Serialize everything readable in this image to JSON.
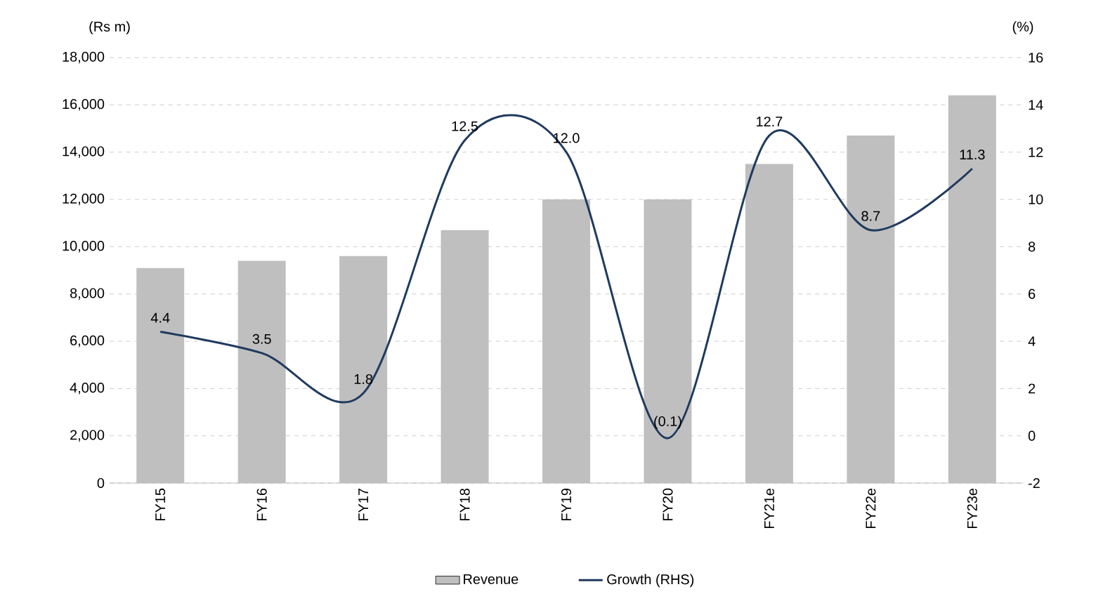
{
  "chart_data": {
    "type": "bar",
    "ylabel": "(Rs m)",
    "y2label": "(%)",
    "categories": [
      "FY15",
      "FY16",
      "FY17",
      "FY18",
      "FY19",
      "FY20",
      "FY21e",
      "FY22e",
      "FY23e"
    ],
    "series": [
      {
        "name": "Revenue",
        "color": "#bfbfbf",
        "values": [
          9100,
          9400,
          9600,
          10700,
          12000,
          12000,
          13500,
          14700,
          16400
        ]
      },
      {
        "name": "Growth (RHS)",
        "type": "line",
        "axis": "y2",
        "color": "#1f3a5f",
        "values": [
          4.4,
          3.5,
          1.8,
          12.5,
          12.0,
          -0.1,
          12.7,
          8.7,
          11.3
        ],
        "value_labels": [
          "4.4",
          "3.5",
          "1.8",
          "12.5",
          "12.0",
          "(0.1)",
          "12.7",
          "8.7",
          "11.3"
        ]
      }
    ],
    "ylim": [
      0,
      18000
    ],
    "yticks": [
      {
        "value": 0,
        "label": "0"
      },
      {
        "value": 2000,
        "label": "2,000"
      },
      {
        "value": 4000,
        "label": "4,000"
      },
      {
        "value": 6000,
        "label": "6,000"
      },
      {
        "value": 8000,
        "label": "8,000"
      },
      {
        "value": 10000,
        "label": "10,000"
      },
      {
        "value": 12000,
        "label": "12,000"
      },
      {
        "value": 14000,
        "label": "14,000"
      },
      {
        "value": 16000,
        "label": "16,000"
      },
      {
        "value": 18000,
        "label": "18,000"
      }
    ],
    "y2lim": [
      -2,
      16
    ],
    "y2ticks": [
      -2,
      0,
      2,
      4,
      6,
      8,
      10,
      12,
      14,
      16
    ],
    "grid": "y",
    "legend": "bottom",
    "marker": "none",
    "line_style": "solid"
  }
}
